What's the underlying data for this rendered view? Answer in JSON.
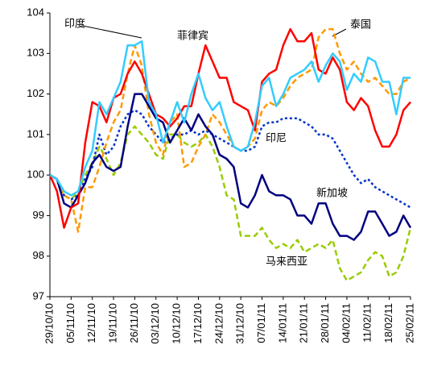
{
  "chart_data": {
    "type": "line",
    "categories": [
      "29/10/10",
      null,
      null,
      "05/11/10",
      null,
      null,
      "12/11/10",
      null,
      null,
      "19/11/10",
      null,
      null,
      "26/11/10",
      null,
      null,
      "03/12/10",
      null,
      null,
      "10/12/10",
      null,
      null,
      "17/12/10",
      null,
      null,
      "24/12/10",
      null,
      null,
      "31/12/10",
      null,
      null,
      "07/01/11",
      null,
      null,
      "14/01/11",
      null,
      null,
      "21/01/11",
      null,
      null,
      "28/01/11",
      null,
      null,
      "04/02/11",
      null,
      null,
      "11/02/11",
      null,
      null,
      "18/02/11",
      null,
      null,
      "25/02/11"
    ],
    "series": [
      {
        "name": "马来西亚",
        "color": "#99cc00",
        "style": "dashed",
        "values": [
          100,
          99.9,
          99.5,
          99.4,
          99.6,
          100.0,
          100.3,
          100.7,
          100.4,
          100.0,
          100.3,
          101.0,
          101.2,
          101.0,
          100.8,
          100.5,
          100.4,
          101.0,
          101.0,
          100.8,
          100.7,
          100.8,
          101.0,
          100.7,
          100.2,
          99.5,
          99.4,
          98.5,
          98.5,
          98.5,
          98.7,
          98.4,
          98.2,
          98.3,
          98.2,
          98.4,
          98.1,
          98.2,
          98.3,
          98.2,
          98.4,
          97.7,
          97.4,
          97.5,
          97.6,
          97.9,
          98.1,
          98.0,
          97.5,
          97.6,
          98.0,
          98.7
        ]
      },
      {
        "name": "印尼",
        "color": "#0033cc",
        "style": "dotted",
        "values": [
          100,
          99.9,
          99.5,
          99.4,
          99.5,
          99.9,
          100.2,
          101.0,
          100.5,
          100.7,
          101.2,
          101.5,
          101.6,
          101.5,
          101.2,
          101.0,
          100.8,
          100.9,
          101.0,
          101.0,
          101.1,
          101.0,
          101.1,
          101.0,
          100.9,
          100.8,
          100.7,
          100.6,
          100.6,
          100.7,
          101.2,
          101.3,
          101.3,
          101.4,
          101.4,
          101.4,
          101.3,
          101.2,
          101.0,
          101.0,
          100.9,
          100.6,
          100.3,
          100.0,
          99.8,
          99.9,
          99.7,
          99.6,
          99.5,
          99.4,
          99.3,
          99.2
        ]
      },
      {
        "name": "泰国",
        "color": "#ff9900",
        "style": "dashed",
        "values": [
          100,
          99.9,
          99.5,
          99.4,
          98.6,
          99.7,
          99.7,
          100.2,
          100.8,
          101.3,
          101.6,
          102.5,
          103.2,
          102.7,
          101.5,
          100.8,
          100.5,
          101.3,
          101.5,
          100.2,
          100.3,
          100.7,
          101.0,
          101.5,
          101.3,
          101.0,
          100.7,
          100.6,
          100.7,
          100.9,
          101.6,
          101.8,
          101.7,
          101.9,
          102.2,
          102.4,
          102.5,
          102.6,
          103.4,
          103.6,
          103.6,
          103.0,
          102.6,
          102.8,
          102.5,
          102.3,
          102.4,
          102.2,
          102.0,
          102.0,
          102.3,
          102.4
        ]
      },
      {
        "name": "新加坡",
        "color": "#000080",
        "style": "solid",
        "values": [
          100,
          99.9,
          99.3,
          99.2,
          99.5,
          99.8,
          100.3,
          100.5,
          100.2,
          100.1,
          100.2,
          101.2,
          102.0,
          102.0,
          101.7,
          101.4,
          101.3,
          100.8,
          101.1,
          101.4,
          101.1,
          101.5,
          101.2,
          101.0,
          100.5,
          100.4,
          100.2,
          99.3,
          99.2,
          99.5,
          100.0,
          99.6,
          99.5,
          99.5,
          99.4,
          99.0,
          99.0,
          98.8,
          99.3,
          99.3,
          98.8,
          98.5,
          98.5,
          98.4,
          98.6,
          99.1,
          99.1,
          98.8,
          98.5,
          98.6,
          99.0,
          98.7
        ]
      },
      {
        "name": "菲律宾",
        "color": "#ff0000",
        "style": "solid",
        "values": [
          100,
          99.6,
          98.7,
          99.2,
          99.3,
          100.8,
          101.8,
          101.7,
          101.3,
          101.9,
          102.0,
          102.5,
          102.8,
          102.5,
          102.0,
          101.5,
          101.4,
          101.2,
          101.4,
          101.7,
          101.7,
          102.5,
          103.2,
          102.8,
          102.4,
          102.4,
          101.8,
          101.7,
          101.6,
          101.1,
          102.3,
          102.5,
          102.6,
          103.2,
          103.6,
          103.3,
          103.3,
          103.5,
          102.6,
          102.5,
          102.9,
          102.6,
          101.8,
          101.6,
          101.9,
          101.7,
          101.1,
          100.7,
          100.7,
          101.0,
          101.6,
          101.8
        ]
      },
      {
        "name": "印度",
        "color": "#33ccff",
        "style": "solid",
        "values": [
          100,
          99.9,
          99.6,
          99.5,
          99.6,
          100.2,
          100.6,
          101.8,
          101.5,
          101.9,
          102.3,
          103.2,
          103.2,
          103.3,
          101.8,
          101.5,
          100.8,
          101.3,
          101.8,
          101.3,
          102.0,
          102.5,
          101.9,
          101.6,
          101.8,
          101.2,
          100.7,
          100.6,
          100.7,
          101.3,
          102.2,
          102.4,
          101.7,
          102.0,
          102.4,
          102.5,
          102.6,
          102.8,
          102.3,
          102.7,
          103.0,
          102.8,
          102.1,
          102.5,
          102.3,
          102.9,
          102.8,
          102.3,
          102.3,
          101.5,
          102.4,
          102.4
        ]
      }
    ],
    "ylim": [
      97,
      104
    ],
    "yticks": [
      97,
      98,
      99,
      100,
      101,
      102,
      103,
      104
    ],
    "grid": false
  }
}
